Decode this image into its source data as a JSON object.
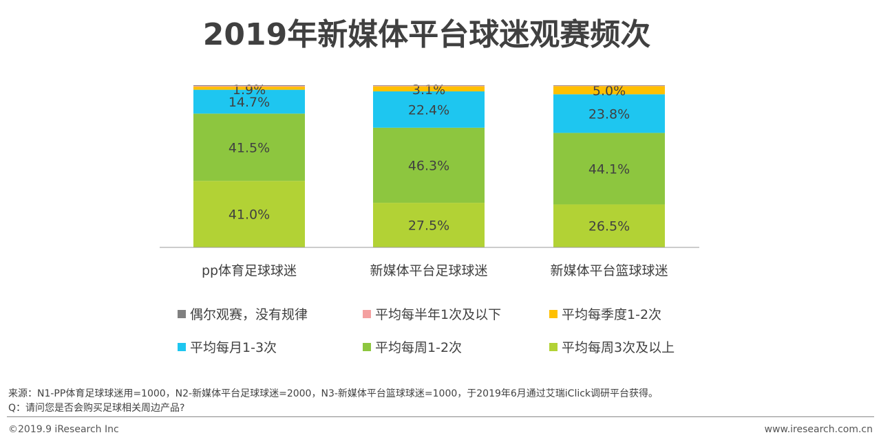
{
  "chart_data": {
    "type": "bar",
    "stacked": true,
    "title": "2019年新媒体平台球迷观赛频次",
    "categories": [
      "pp体育足球球迷",
      "新媒体平台足球球迷",
      "新媒体平台篮球球迷"
    ],
    "ylim": [
      0,
      100
    ],
    "grid": false,
    "legend_position": "bottom",
    "series": [
      {
        "name": "平均每周3次及以上",
        "color": "#B2D235",
        "values": [
          41.0,
          27.5,
          26.5
        ],
        "labels": [
          "41.0%",
          "27.5%",
          "26.5%"
        ]
      },
      {
        "name": "平均每周1-2次",
        "color": "#8DC63F",
        "values": [
          41.5,
          46.3,
          44.1
        ],
        "labels": [
          "41.5%",
          "46.3%",
          "44.1%"
        ]
      },
      {
        "name": "平均每月1-3次",
        "color": "#1EC6F0",
        "values": [
          14.7,
          22.4,
          23.8
        ],
        "labels": [
          "14.7%",
          "22.4%",
          "23.8%"
        ]
      },
      {
        "name": "平均每季度1-2次",
        "color": "#FFC000",
        "values": [
          1.9,
          3.1,
          5.0
        ],
        "labels": [
          "1.9%",
          "3.1%",
          "5.0%"
        ]
      },
      {
        "name": "平均每半年1次及以下",
        "color": "#F4A0A0",
        "values": [
          0.5,
          0.4,
          0.3
        ],
        "labels": [
          "",
          "",
          ""
        ]
      },
      {
        "name": "偶尔观赛，没有规律",
        "color": "#808080",
        "values": [
          0.4,
          0.3,
          0.3
        ],
        "labels": [
          "",
          "",
          ""
        ]
      }
    ],
    "legend_order": [
      5,
      4,
      3,
      2,
      1,
      0
    ]
  },
  "footer": {
    "source": "来源：N1-PP体育足球球迷用=1000，N2-新媒体平台足球球迷=2000，N3-新媒体平台篮球球迷=1000，于2019年6月通过艾瑞iClick调研平台获得。",
    "question": "Q：请问您是否会购买足球相关周边产品?",
    "copyright": "©2019.9 iResearch Inc",
    "website": "www.iresearch.com.cn"
  }
}
